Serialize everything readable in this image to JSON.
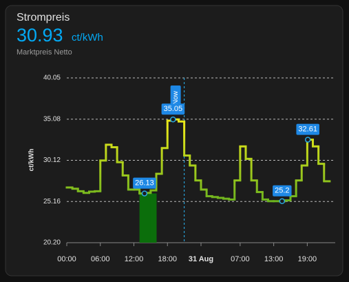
{
  "header": {
    "title": "Strompreis",
    "state": 30.93,
    "unit": "ct/kWh",
    "subtitle": "Marktpreis Netto"
  },
  "chart_data": {
    "type": "step-line",
    "y_axis_label": "ct/kWh",
    "x": [
      0,
      1,
      2,
      3,
      4,
      5,
      6,
      7,
      8,
      9,
      10,
      11,
      12,
      13,
      14,
      15,
      16,
      17,
      18,
      19,
      20,
      21,
      22,
      23,
      24,
      25,
      26,
      27,
      28,
      29,
      30,
      31,
      32,
      33,
      34,
      35,
      36,
      37,
      38,
      39,
      40,
      41,
      42,
      43,
      44,
      45,
      46
    ],
    "values": [
      26.85,
      26.7,
      26.4,
      26.2,
      26.35,
      26.4,
      30.1,
      32.0,
      31.7,
      29.9,
      28.3,
      26.6,
      26.6,
      26.13,
      26.2,
      26.5,
      28.5,
      31.6,
      34.9,
      35.05,
      34.8,
      30.7,
      29.5,
      27.7,
      26.6,
      25.8,
      25.7,
      25.6,
      25.5,
      25.4,
      27.7,
      31.8,
      30.3,
      27.7,
      26.3,
      25.4,
      25.2,
      25.2,
      25.2,
      25.3,
      25.8,
      27.7,
      29.5,
      32.61,
      31.8,
      29.7,
      27.6
    ],
    "color_low": "#5fae1f",
    "color_high": "#e8e81a",
    "bars": {
      "x": [
        13,
        14,
        15
      ],
      "values": [
        26.13,
        26.13,
        26.13
      ],
      "color": "#0b6e0b"
    },
    "annotations": [
      {
        "x": 13.9,
        "value": 26.13
      },
      {
        "x": 19,
        "value": 35.05
      },
      {
        "x": 38.5,
        "value": 25.2
      },
      {
        "x": 43.1,
        "value": 32.61
      }
    ],
    "now": {
      "x": 21,
      "label": "Now"
    },
    "xlim": [
      0,
      48
    ],
    "xticks": [
      {
        "value": 0,
        "label": "00:00"
      },
      {
        "value": 6,
        "label": "06:00"
      },
      {
        "value": 12,
        "label": "12:00"
      },
      {
        "value": 18,
        "label": "18:00"
      },
      {
        "value": 24,
        "label": "31 Aug"
      },
      {
        "value": 31,
        "label": "07:00"
      },
      {
        "value": 37,
        "label": "13:00"
      },
      {
        "value": 43,
        "label": "19:00"
      }
    ],
    "ylim": [
      20.2,
      40.05
    ],
    "yticks": [
      {
        "value": 20.2,
        "label": "20.20"
      },
      25.16,
      30.12,
      35.08,
      40.05
    ],
    "grid": true
  }
}
